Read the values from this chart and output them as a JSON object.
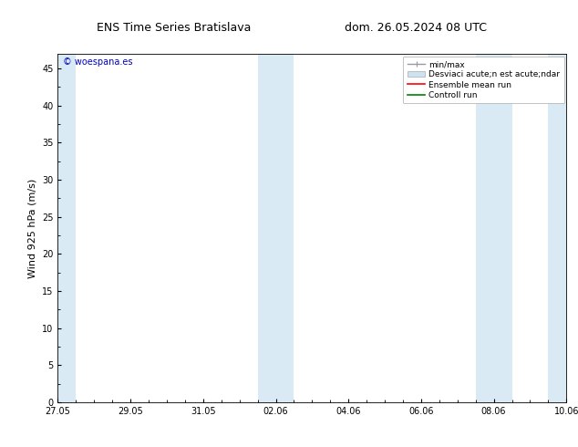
{
  "title_left": "ENS Time Series Bratislava",
  "title_right": "dom. 26.05.2024 08 UTC",
  "ylabel": "Wind 925 hPa (m/s)",
  "watermark": "© woespana.es",
  "background_color": "#ffffff",
  "plot_bg_color": "#ffffff",
  "shaded_band_color": "#daeaf5",
  "ylim": [
    0,
    47
  ],
  "yticks": [
    0,
    5,
    10,
    15,
    20,
    25,
    30,
    35,
    40,
    45
  ],
  "x_start_num": 0,
  "x_end_num": 14,
  "xtick_labels": [
    "27.05",
    "29.05",
    "31.05",
    "02.06",
    "04.06",
    "06.06",
    "08.06",
    "10.06"
  ],
  "xtick_positions": [
    0,
    2,
    4,
    6,
    8,
    10,
    12,
    14
  ],
  "shaded_bands": [
    [
      0.0,
      0.5
    ],
    [
      5.5,
      6.5
    ],
    [
      11.5,
      12.5
    ],
    [
      13.5,
      14.0
    ]
  ],
  "legend_labels": [
    "min/max",
    "Desviaci acute;n est acute;ndar",
    "Ensemble mean run",
    "Controll run"
  ],
  "title_fontsize": 9,
  "axis_fontsize": 8,
  "tick_fontsize": 7,
  "legend_fontsize": 6.5
}
